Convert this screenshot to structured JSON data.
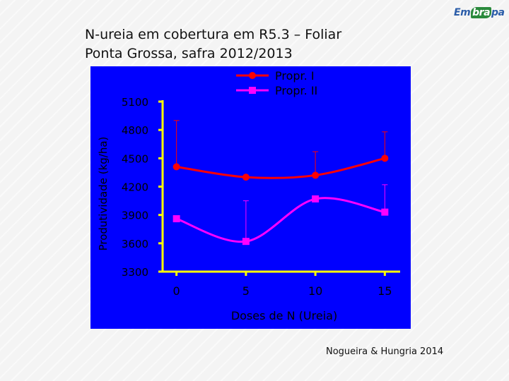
{
  "slide": {
    "title_line1": "N-ureia em cobertura em R5.3 – Foliar",
    "title_line2": "Ponta Grossa, safra 2012/2013",
    "logo_text_a": "Em",
    "logo_text_b": "bra",
    "logo_text_c": "pa",
    "credit": "Nogueira & Hungria 2014"
  },
  "chart_data": {
    "type": "line",
    "title": "",
    "xlabel": "Doses de N (Ureia)",
    "ylabel": "Produtividade (kg/ha)",
    "x": [
      0,
      5,
      10,
      15
    ],
    "xlim": [
      -1,
      16
    ],
    "ylim": [
      3300,
      5100
    ],
    "yticks": [
      3300,
      3600,
      3900,
      4200,
      4500,
      4800,
      5100
    ],
    "xticks": [
      0,
      5,
      10,
      15
    ],
    "grid": false,
    "legend": "top-right",
    "smooth": true,
    "series": [
      {
        "name": "Propr. I",
        "values": [
          4410,
          4300,
          4320,
          4500
        ],
        "error_upper": [
          4900,
          null,
          4570,
          4780
        ],
        "color": "#ff0000",
        "marker": "circle"
      },
      {
        "name": "Propr. II",
        "values": [
          3860,
          3620,
          4070,
          3930
        ],
        "error_upper": [
          null,
          4050,
          null,
          4220
        ],
        "color": "#ff00ff",
        "marker": "square"
      }
    ],
    "colors": {
      "background": "#0000ff",
      "axis": "#ffff00",
      "text": "#000000"
    }
  }
}
